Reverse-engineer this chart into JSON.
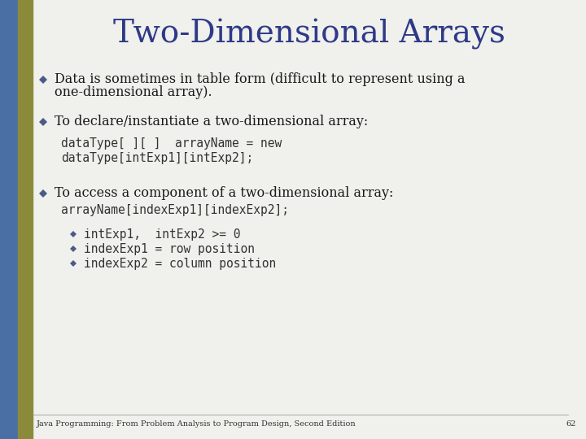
{
  "title": "Two-Dimensional Arrays",
  "title_color": "#2E3A87",
  "title_fontsize": 28,
  "bg_color": "#F0F0EC",
  "bullet_color": "#4A5A8A",
  "body_text_color": "#1A1A1A",
  "code_color": "#333333",
  "footer_text": "Java Programming: From Problem Analysis to Program Design, Second Edition",
  "footer_page": "62",
  "left_bar_blue": "#4A6FA5",
  "left_bar_gold": "#8B8B3A",
  "bullet1_line1": "Data is sometimes in table form (difficult to represent using a",
  "bullet1_line2": "one-dimensional array).",
  "bullet2_text": "To declare/instantiate a two-dimensional array:",
  "code1_line1": "dataType[ ][ ]  arrayName = new",
  "code1_line2": "dataType[intExp1][intExp2];",
  "bullet3_text": "To access a component of a two-dimensional array:",
  "code2_line": "arrayName[indexExp1][indexExp2];",
  "sub_bullets": [
    "intExp1,  intExp2 >= 0",
    "indexExp1 = row position",
    "indexExp2 = column position"
  ]
}
